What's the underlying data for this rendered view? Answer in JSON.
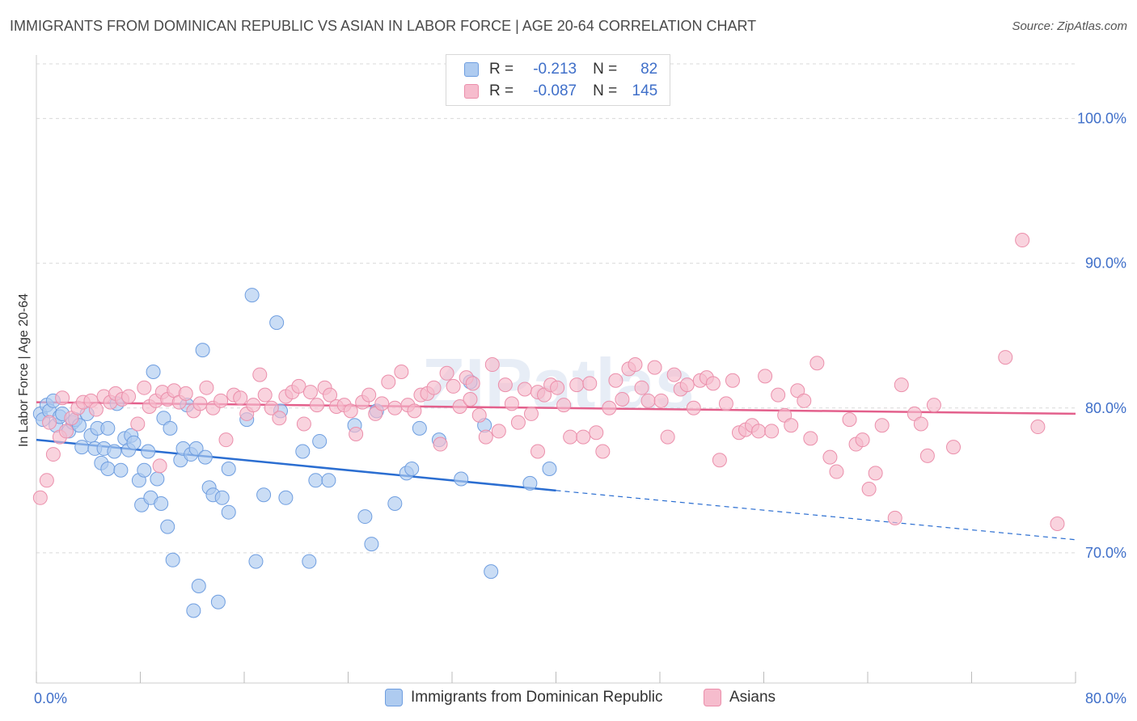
{
  "header": {
    "title": "IMMIGRANTS FROM DOMINICAN REPUBLIC VS ASIAN IN LABOR FORCE | AGE 20-64 CORRELATION CHART",
    "source": "Source: ZipAtlas.com"
  },
  "watermark": "ZIPatlas",
  "colors": {
    "blue_fill": "#aecbf0",
    "blue_stroke": "#6f9ee0",
    "blue_line": "#2b6ed1",
    "pink_fill": "#f6bccd",
    "pink_stroke": "#eb8fab",
    "pink_line": "#e3608c",
    "grid": "#d9d9d9",
    "tick_text": "#3f6fc9"
  },
  "legend_top": {
    "rows": [
      {
        "r_label": "R =",
        "r_value": "-0.213",
        "n_label": "N =",
        "n_value": "82"
      },
      {
        "r_label": "R =",
        "r_value": "-0.087",
        "n_label": "N =",
        "n_value": "145"
      }
    ]
  },
  "legend_bottom": {
    "items": [
      "Immigrants from Dominican Republic",
      "Asians"
    ]
  },
  "chart_data": {
    "type": "scatter",
    "title": "IMMIGRANTS FROM DOMINICAN REPUBLIC VS ASIAN IN LABOR FORCE | AGE 20-64 CORRELATION CHART",
    "xlabel": "",
    "ylabel": "In Labor Force | Age 20-64",
    "xlim": [
      0,
      80
    ],
    "ylim": [
      61,
      104
    ],
    "x_ticks": [
      "0.0%",
      "80.0%"
    ],
    "y_ticks": [
      {
        "value": 100,
        "label": "100.0%"
      },
      {
        "value": 90,
        "label": "90.0%"
      },
      {
        "value": 80,
        "label": "80.0%"
      },
      {
        "value": 70,
        "label": "70.0%"
      }
    ],
    "grid": true,
    "legend_placement": "top-center",
    "series": [
      {
        "name": "Immigrants from Dominican Republic",
        "color": "#aecbf0",
        "R": -0.213,
        "N": 82,
        "trend": {
          "x_start": 0,
          "y_start": 77.8,
          "x_solid_end": 40,
          "y_solid_end": 74.3,
          "x_end": 80,
          "y_end": 70.9
        },
        "points": [
          [
            0.3,
            79.6
          ],
          [
            0.5,
            79.2
          ],
          [
            0.8,
            80.2
          ],
          [
            1.0,
            79.8
          ],
          [
            1.3,
            80.5
          ],
          [
            1.5,
            78.8
          ],
          [
            1.8,
            79.4
          ],
          [
            2.0,
            79.6
          ],
          [
            2.5,
            78.4
          ],
          [
            2.8,
            79.0
          ],
          [
            3.0,
            79.2
          ],
          [
            3.3,
            78.8
          ],
          [
            3.5,
            77.3
          ],
          [
            3.9,
            79.6
          ],
          [
            4.2,
            78.1
          ],
          [
            4.5,
            77.2
          ],
          [
            4.7,
            78.6
          ],
          [
            5.0,
            76.2
          ],
          [
            5.2,
            77.2
          ],
          [
            5.5,
            78.6
          ],
          [
            5.5,
            75.8
          ],
          [
            6.0,
            77.0
          ],
          [
            6.2,
            80.3
          ],
          [
            6.5,
            75.7
          ],
          [
            6.8,
            77.9
          ],
          [
            7.1,
            77.1
          ],
          [
            7.3,
            78.1
          ],
          [
            7.5,
            77.6
          ],
          [
            7.9,
            75.0
          ],
          [
            8.1,
            73.3
          ],
          [
            8.3,
            75.7
          ],
          [
            8.6,
            77.0
          ],
          [
            8.8,
            73.8
          ],
          [
            9.0,
            82.5
          ],
          [
            9.3,
            75.1
          ],
          [
            9.6,
            73.4
          ],
          [
            9.8,
            79.3
          ],
          [
            10.1,
            71.8
          ],
          [
            10.3,
            78.6
          ],
          [
            10.5,
            69.5
          ],
          [
            11.1,
            76.4
          ],
          [
            11.3,
            77.2
          ],
          [
            11.6,
            80.2
          ],
          [
            11.9,
            76.8
          ],
          [
            12.1,
            66.0
          ],
          [
            12.3,
            77.2
          ],
          [
            12.5,
            67.7
          ],
          [
            12.8,
            84.0
          ],
          [
            13.0,
            76.6
          ],
          [
            13.3,
            74.5
          ],
          [
            13.6,
            74.0
          ],
          [
            14.0,
            66.6
          ],
          [
            14.3,
            73.8
          ],
          [
            14.8,
            72.8
          ],
          [
            14.8,
            75.8
          ],
          [
            16.2,
            79.2
          ],
          [
            16.6,
            87.8
          ],
          [
            16.9,
            69.4
          ],
          [
            17.5,
            74.0
          ],
          [
            18.5,
            85.9
          ],
          [
            18.8,
            79.8
          ],
          [
            19.2,
            73.8
          ],
          [
            20.5,
            77.0
          ],
          [
            21.0,
            69.4
          ],
          [
            21.5,
            75.0
          ],
          [
            22.5,
            75.0
          ],
          [
            24.5,
            78.8
          ],
          [
            25.3,
            72.5
          ],
          [
            25.8,
            70.6
          ],
          [
            26.2,
            79.8
          ],
          [
            27.6,
            73.4
          ],
          [
            28.5,
            75.5
          ],
          [
            28.9,
            75.8
          ],
          [
            29.5,
            78.6
          ],
          [
            31.0,
            77.8
          ],
          [
            33.4,
            81.8
          ],
          [
            34.5,
            78.8
          ],
          [
            35.0,
            68.7
          ],
          [
            38.0,
            74.8
          ],
          [
            39.5,
            75.8
          ],
          [
            32.7,
            75.1
          ],
          [
            21.8,
            77.7
          ]
        ]
      },
      {
        "name": "Asians",
        "color": "#f6bccd",
        "R": -0.087,
        "N": 145,
        "trend": {
          "x_start": 0,
          "y_start": 80.4,
          "x_end": 80,
          "y_end": 79.6
        },
        "points": [
          [
            0.3,
            73.8
          ],
          [
            0.8,
            75.0
          ],
          [
            1.3,
            76.8
          ],
          [
            1.8,
            78.0
          ],
          [
            2.3,
            78.4
          ],
          [
            2.7,
            79.3
          ],
          [
            3.2,
            80.0
          ],
          [
            3.6,
            80.4
          ],
          [
            4.2,
            80.5
          ],
          [
            4.6,
            79.9
          ],
          [
            5.2,
            80.8
          ],
          [
            5.7,
            80.4
          ],
          [
            6.1,
            81.0
          ],
          [
            6.6,
            80.6
          ],
          [
            7.1,
            80.8
          ],
          [
            7.8,
            78.9
          ],
          [
            8.3,
            81.4
          ],
          [
            8.7,
            80.1
          ],
          [
            9.2,
            80.5
          ],
          [
            9.7,
            81.1
          ],
          [
            10.1,
            80.6
          ],
          [
            10.6,
            81.2
          ],
          [
            11.0,
            80.4
          ],
          [
            11.5,
            81.0
          ],
          [
            12.1,
            79.8
          ],
          [
            12.6,
            80.3
          ],
          [
            13.1,
            81.4
          ],
          [
            13.6,
            80.0
          ],
          [
            14.2,
            80.5
          ],
          [
            14.6,
            77.8
          ],
          [
            15.2,
            80.9
          ],
          [
            15.7,
            80.7
          ],
          [
            16.2,
            79.6
          ],
          [
            16.7,
            80.2
          ],
          [
            17.2,
            82.3
          ],
          [
            17.6,
            80.9
          ],
          [
            18.1,
            80.0
          ],
          [
            18.7,
            79.3
          ],
          [
            19.2,
            80.8
          ],
          [
            19.7,
            81.1
          ],
          [
            20.2,
            81.5
          ],
          [
            20.6,
            78.9
          ],
          [
            21.1,
            81.1
          ],
          [
            21.6,
            80.2
          ],
          [
            22.2,
            81.4
          ],
          [
            22.6,
            80.9
          ],
          [
            23.1,
            80.1
          ],
          [
            23.7,
            80.2
          ],
          [
            24.2,
            79.8
          ],
          [
            24.6,
            78.2
          ],
          [
            25.1,
            80.4
          ],
          [
            25.6,
            80.9
          ],
          [
            26.1,
            79.6
          ],
          [
            26.6,
            80.3
          ],
          [
            27.1,
            81.8
          ],
          [
            27.6,
            80.0
          ],
          [
            28.1,
            82.5
          ],
          [
            28.6,
            80.2
          ],
          [
            29.1,
            79.8
          ],
          [
            29.6,
            80.9
          ],
          [
            30.1,
            81.0
          ],
          [
            30.6,
            81.4
          ],
          [
            31.1,
            77.5
          ],
          [
            31.6,
            82.4
          ],
          [
            32.1,
            81.5
          ],
          [
            32.6,
            80.1
          ],
          [
            33.1,
            82.1
          ],
          [
            33.6,
            81.7
          ],
          [
            34.1,
            79.5
          ],
          [
            34.6,
            78.0
          ],
          [
            35.1,
            83.0
          ],
          [
            35.6,
            78.4
          ],
          [
            36.1,
            81.6
          ],
          [
            36.6,
            80.3
          ],
          [
            37.1,
            79.0
          ],
          [
            37.6,
            81.3
          ],
          [
            38.1,
            79.6
          ],
          [
            38.6,
            81.1
          ],
          [
            39.1,
            80.9
          ],
          [
            39.6,
            81.6
          ],
          [
            40.1,
            81.4
          ],
          [
            40.6,
            80.2
          ],
          [
            41.1,
            78.0
          ],
          [
            41.6,
            81.6
          ],
          [
            42.1,
            78.0
          ],
          [
            42.6,
            81.7
          ],
          [
            43.1,
            78.3
          ],
          [
            43.6,
            77.0
          ],
          [
            44.1,
            80.0
          ],
          [
            44.6,
            81.9
          ],
          [
            45.1,
            80.6
          ],
          [
            45.6,
            82.7
          ],
          [
            46.1,
            83.0
          ],
          [
            46.6,
            81.4
          ],
          [
            47.1,
            80.5
          ],
          [
            47.6,
            82.8
          ],
          [
            48.1,
            80.5
          ],
          [
            48.6,
            78.0
          ],
          [
            49.1,
            82.3
          ],
          [
            49.6,
            81.3
          ],
          [
            50.1,
            81.6
          ],
          [
            50.6,
            80.0
          ],
          [
            51.1,
            81.9
          ],
          [
            51.6,
            82.1
          ],
          [
            52.1,
            81.7
          ],
          [
            52.6,
            76.4
          ],
          [
            53.1,
            80.3
          ],
          [
            53.6,
            81.9
          ],
          [
            54.1,
            78.3
          ],
          [
            54.6,
            78.5
          ],
          [
            55.1,
            78.8
          ],
          [
            55.6,
            78.4
          ],
          [
            56.1,
            82.2
          ],
          [
            56.6,
            78.4
          ],
          [
            57.1,
            80.9
          ],
          [
            57.6,
            79.5
          ],
          [
            58.1,
            78.8
          ],
          [
            58.6,
            81.2
          ],
          [
            59.1,
            80.5
          ],
          [
            59.6,
            77.9
          ],
          [
            60.1,
            83.1
          ],
          [
            61.1,
            76.6
          ],
          [
            61.6,
            75.6
          ],
          [
            62.6,
            79.2
          ],
          [
            63.1,
            77.5
          ],
          [
            63.6,
            77.8
          ],
          [
            64.1,
            74.4
          ],
          [
            64.6,
            75.5
          ],
          [
            65.1,
            78.8
          ],
          [
            66.1,
            72.4
          ],
          [
            66.6,
            81.6
          ],
          [
            67.6,
            79.6
          ],
          [
            68.1,
            78.9
          ],
          [
            68.6,
            76.7
          ],
          [
            69.1,
            80.2
          ],
          [
            70.6,
            77.3
          ],
          [
            75.9,
            91.6
          ],
          [
            74.6,
            83.5
          ],
          [
            77.1,
            78.7
          ],
          [
            78.6,
            72.0
          ],
          [
            1.0,
            79.0
          ],
          [
            2.0,
            80.7
          ],
          [
            9.5,
            76.0
          ],
          [
            33.4,
            80.6
          ],
          [
            38.6,
            77.0
          ]
        ]
      }
    ]
  }
}
